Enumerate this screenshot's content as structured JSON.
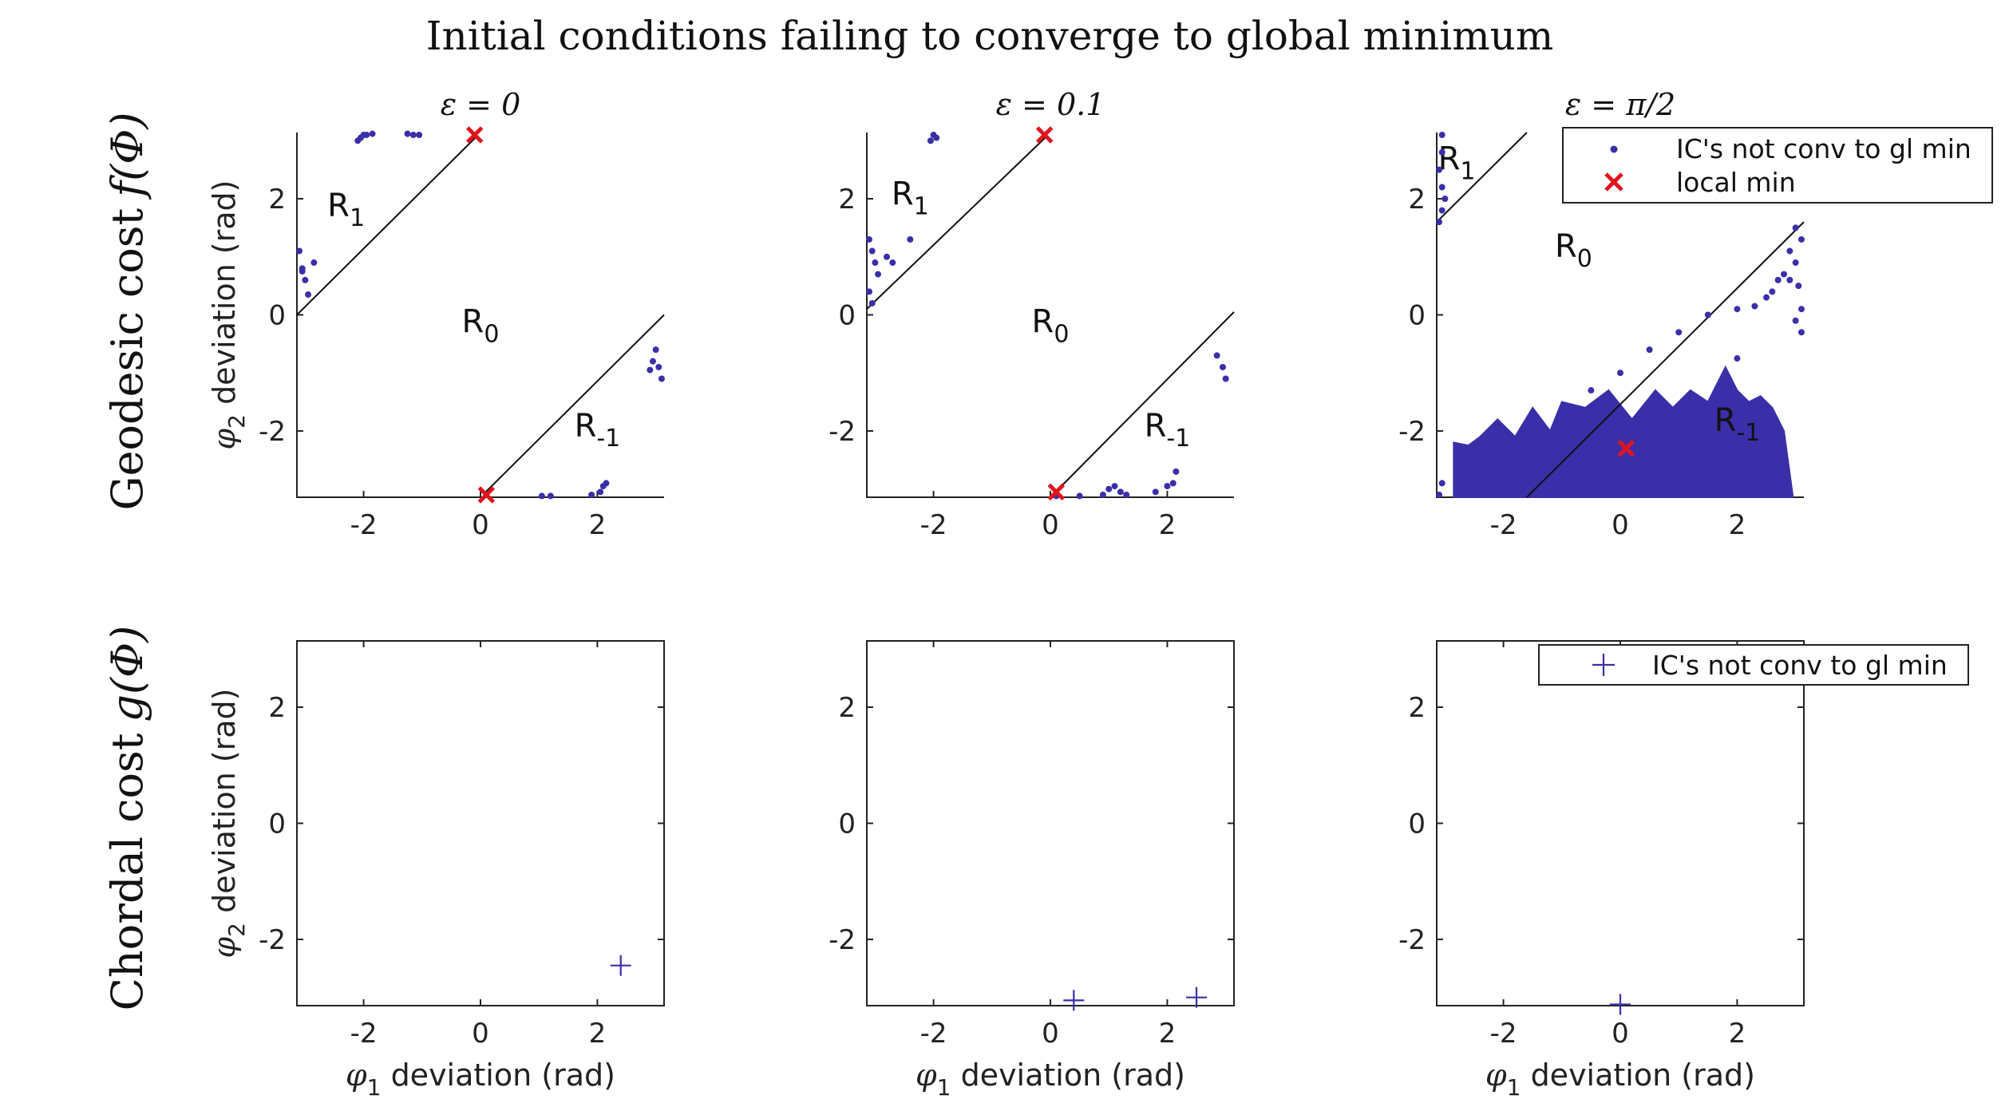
{
  "figure": {
    "title": "Initial conditions failing to converge to global minimum",
    "rows": [
      {
        "label_text": "Geodesic cost",
        "label_math": "f(Φ)"
      },
      {
        "label_text": "Chordal cost",
        "label_math": "g(Φ)"
      }
    ],
    "col_titles": [
      "ε = 0",
      "ε = 0.1",
      "ε = π/2"
    ],
    "xlabel": {
      "sym": "φ",
      "sub": "1",
      "text": " deviation (rad)"
    },
    "ylabel": {
      "sym": "φ",
      "sub": "2",
      "text": " deviation (rad)"
    },
    "legend_top": {
      "items": [
        "IC's not conv to gl min",
        "local min"
      ]
    },
    "legend_bottom": {
      "items": [
        "IC's not conv to gl min"
      ]
    },
    "colors": {
      "ic": "#3a2fa8",
      "local_min": "#e0141e",
      "axis": "#222222",
      "line": "#111111"
    }
  },
  "chart_data": [
    {
      "type": "scatter",
      "row": "Geodesic cost f(Φ)",
      "title": "ε = 0",
      "xlim": [
        -3.1416,
        3.1416
      ],
      "ylim": [
        -3.1416,
        3.1416
      ],
      "xticks": [
        -2,
        0,
        2
      ],
      "yticks": [
        2,
        0,
        -2
      ],
      "region_lines": [
        {
          "x": [
            -3.1416,
            -0.05
          ],
          "y": [
            0,
            3.09
          ]
        },
        {
          "x": [
            0.05,
            3.1416
          ],
          "y": [
            -3.09,
            0
          ]
        }
      ],
      "region_labels": [
        {
          "base": "R",
          "sub": "1",
          "x": -2.3,
          "y": 1.7
        },
        {
          "base": "R",
          "sub": "0",
          "x": 0,
          "y": -0.3
        },
        {
          "base": "R",
          "sub": "-1",
          "x": 2.0,
          "y": -2.1
        }
      ],
      "series": [
        {
          "name": "IC's not conv to gl min",
          "marker": "dot",
          "points": [
            [
              -3.1,
              1.1
            ],
            [
              -3.05,
              0.8
            ],
            [
              -3.0,
              0.6
            ],
            [
              -2.95,
              0.35
            ],
            [
              -2.85,
              0.9
            ],
            [
              -3.05,
              0.75
            ],
            [
              -2.0,
              3.1
            ],
            [
              -2.05,
              3.05
            ],
            [
              -2.1,
              3.0
            ],
            [
              -1.95,
              3.1
            ],
            [
              -1.85,
              3.12
            ],
            [
              -1.25,
              3.12
            ],
            [
              -1.15,
              3.1
            ],
            [
              -1.05,
              3.1
            ],
            [
              1.05,
              -3.12
            ],
            [
              1.2,
              -3.12
            ],
            [
              1.9,
              -3.1
            ],
            [
              2.05,
              -3.05
            ],
            [
              2.1,
              -2.95
            ],
            [
              2.15,
              -2.9
            ],
            [
              3.0,
              -0.6
            ],
            [
              2.95,
              -0.8
            ],
            [
              3.05,
              -0.9
            ],
            [
              3.1,
              -1.1
            ],
            [
              2.9,
              -0.95
            ]
          ]
        },
        {
          "name": "local min",
          "marker": "x",
          "points": [
            [
              -0.1,
              3.1
            ],
            [
              0.1,
              -3.1
            ]
          ]
        }
      ]
    },
    {
      "type": "scatter",
      "row": "Geodesic cost f(Φ)",
      "title": "ε = 0.1",
      "xlim": [
        -3.1416,
        3.1416
      ],
      "ylim": [
        -3.1416,
        3.1416
      ],
      "xticks": [
        -2,
        0,
        2
      ],
      "yticks": [
        2,
        0,
        -2
      ],
      "region_lines": [
        {
          "x": [
            -3.1416,
            -0.05
          ],
          "y": [
            0.1,
            3.09
          ]
        },
        {
          "x": [
            0.05,
            3.1416
          ],
          "y": [
            -3.09,
            0.05
          ]
        }
      ],
      "region_labels": [
        {
          "base": "R",
          "sub": "1",
          "x": -2.4,
          "y": 1.9
        },
        {
          "base": "R",
          "sub": "0",
          "x": 0,
          "y": -0.3
        },
        {
          "base": "R",
          "sub": "-1",
          "x": 2.0,
          "y": -2.1
        }
      ],
      "series": [
        {
          "name": "IC's not conv to gl min",
          "marker": "dot",
          "points": [
            [
              -3.1,
              1.3
            ],
            [
              -3.05,
              1.1
            ],
            [
              -3.0,
              0.9
            ],
            [
              -2.95,
              0.7
            ],
            [
              -3.1,
              0.4
            ],
            [
              -3.05,
              0.2
            ],
            [
              -2.8,
              1.0
            ],
            [
              -2.7,
              0.9
            ],
            [
              -2.4,
              1.3
            ],
            [
              -2.0,
              3.1
            ],
            [
              -1.95,
              3.05
            ],
            [
              -2.05,
              3.0
            ],
            [
              0.1,
              -3.12
            ],
            [
              0.5,
              -3.12
            ],
            [
              0.9,
              -3.1
            ],
            [
              1.0,
              -3.0
            ],
            [
              1.1,
              -2.95
            ],
            [
              1.2,
              -3.05
            ],
            [
              1.3,
              -3.1
            ],
            [
              1.8,
              -3.05
            ],
            [
              2.0,
              -2.95
            ],
            [
              2.1,
              -2.9
            ],
            [
              2.15,
              -2.7
            ],
            [
              2.85,
              -0.7
            ],
            [
              2.95,
              -0.9
            ],
            [
              3.0,
              -1.1
            ]
          ]
        },
        {
          "name": "local min",
          "marker": "x",
          "points": [
            [
              -0.1,
              3.1
            ],
            [
              0.1,
              -3.05
            ]
          ]
        }
      ]
    },
    {
      "type": "scatter",
      "row": "Geodesic cost f(Φ)",
      "title": "ε = π/2",
      "xlim": [
        -3.1416,
        3.1416
      ],
      "ylim": [
        -3.1416,
        3.1416
      ],
      "xticks": [
        -2,
        0,
        2
      ],
      "yticks": [
        2,
        0,
        -2
      ],
      "region_lines": [
        {
          "x": [
            -3.1416,
            -1.6
          ],
          "y": [
            1.6,
            3.1416
          ]
        },
        {
          "x": [
            -1.6,
            3.1416
          ],
          "y": [
            -3.1416,
            1.6
          ]
        }
      ],
      "region_labels": [
        {
          "base": "R",
          "sub": "1",
          "x": -2.8,
          "y": 2.5
        },
        {
          "base": "R",
          "sub": "0",
          "x": -0.8,
          "y": 1.0
        },
        {
          "base": "R",
          "sub": "-1",
          "x": 2.0,
          "y": -2.0
        }
      ],
      "filled_region": {
        "name": "IC's not conv to gl min",
        "x": [
          -2.85,
          -2.6,
          -2.4,
          -2.1,
          -1.8,
          -1.5,
          -1.2,
          -1.0,
          -0.6,
          -0.2,
          0.2,
          0.6,
          0.9,
          1.2,
          1.5,
          1.8,
          2.0,
          2.2,
          2.4,
          2.6,
          2.8,
          2.95
        ],
        "y": [
          -2.2,
          -2.25,
          -2.1,
          -1.8,
          -2.1,
          -1.6,
          -2.0,
          -1.5,
          -1.6,
          -1.3,
          -1.8,
          -1.3,
          -1.6,
          -1.3,
          -1.5,
          -0.9,
          -1.3,
          -1.5,
          -1.4,
          -1.6,
          -2.0,
          -3.1
        ]
      },
      "series": [
        {
          "name": "IC's not conv to gl min",
          "marker": "dot",
          "points": [
            [
              -3.05,
              3.1
            ],
            [
              -3.05,
              2.8
            ],
            [
              -3.1,
              2.5
            ],
            [
              -3.05,
              2.2
            ],
            [
              -3.0,
              2.0
            ],
            [
              -3.05,
              1.8
            ],
            [
              -3.1,
              1.6
            ],
            [
              -3.05,
              -2.9
            ],
            [
              -3.1,
              -3.1
            ],
            [
              2.7,
              0.6
            ],
            [
              2.8,
              0.7
            ],
            [
              2.6,
              0.4
            ],
            [
              2.5,
              0.3
            ],
            [
              2.3,
              0.15
            ],
            [
              2.0,
              0.1
            ],
            [
              1.5,
              0.0
            ],
            [
              1.0,
              -0.3
            ],
            [
              0.5,
              -0.6
            ],
            [
              0.0,
              -1.0
            ],
            [
              -0.5,
              -1.3
            ],
            [
              3.0,
              1.5
            ],
            [
              3.1,
              1.3
            ],
            [
              3.0,
              0.9
            ],
            [
              3.05,
              0.5
            ],
            [
              3.1,
              0.1
            ],
            [
              3.1,
              -0.3
            ],
            [
              3.0,
              -0.1
            ],
            [
              2.9,
              0.6
            ],
            [
              2.9,
              1.1
            ],
            [
              2.0,
              -0.75
            ]
          ]
        },
        {
          "name": "local min",
          "marker": "x",
          "points": [
            [
              0.1,
              -2.3
            ]
          ]
        }
      ]
    },
    {
      "type": "scatter",
      "row": "Chordal cost g(Φ)",
      "title": "",
      "xlim": [
        -3.1416,
        3.1416
      ],
      "ylim": [
        -3.1416,
        3.1416
      ],
      "xticks": [
        -2,
        0,
        2
      ],
      "yticks": [
        2,
        0,
        -2
      ],
      "series": [
        {
          "name": "IC's not conv to gl min",
          "marker": "plus",
          "points": [
            [
              2.4,
              -2.45
            ]
          ]
        }
      ]
    },
    {
      "type": "scatter",
      "row": "Chordal cost g(Φ)",
      "title": "",
      "xlim": [
        -3.1416,
        3.1416
      ],
      "ylim": [
        -3.1416,
        3.1416
      ],
      "xticks": [
        -2,
        0,
        2
      ],
      "yticks": [
        2,
        0,
        -2
      ],
      "series": [
        {
          "name": "IC's not conv to gl min",
          "marker": "plus",
          "points": [
            [
              0.4,
              -3.05
            ],
            [
              2.5,
              -3.0
            ]
          ]
        }
      ]
    },
    {
      "type": "scatter",
      "row": "Chordal cost g(Φ)",
      "title": "",
      "xlim": [
        -3.1416,
        3.1416
      ],
      "ylim": [
        -3.1416,
        3.1416
      ],
      "xticks": [
        -2,
        0,
        2
      ],
      "yticks": [
        2,
        0,
        -2
      ],
      "series": [
        {
          "name": "IC's not conv to gl min",
          "marker": "plus",
          "points": [
            [
              0.0,
              -3.12
            ]
          ]
        }
      ]
    }
  ]
}
